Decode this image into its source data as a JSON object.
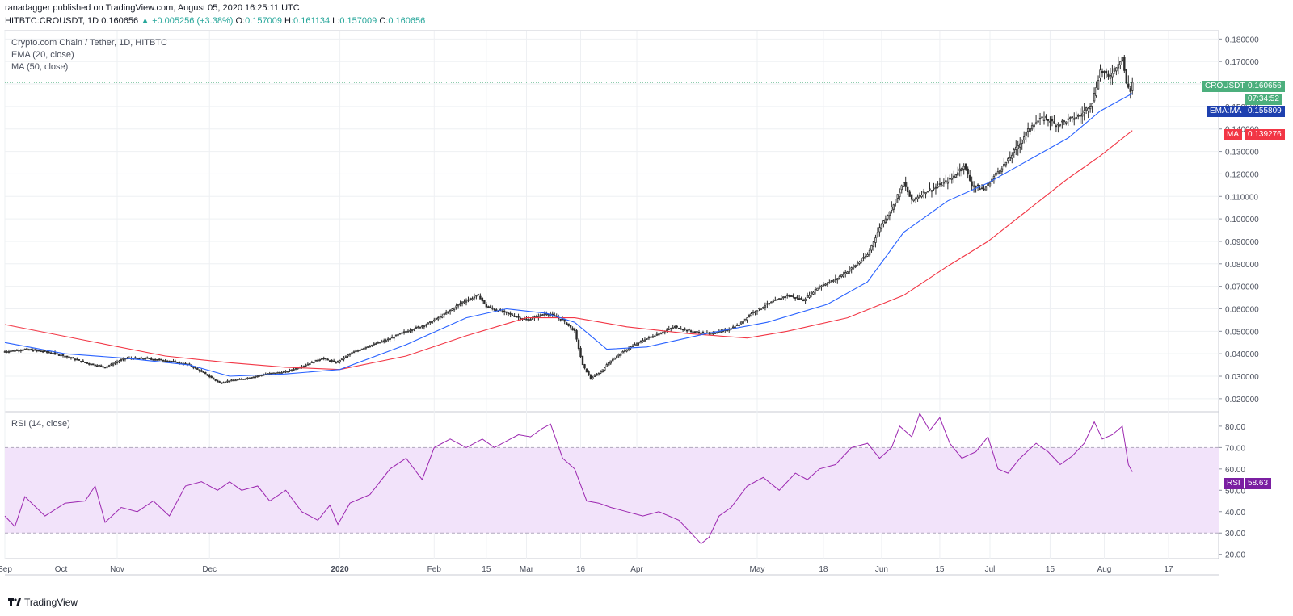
{
  "header": {
    "line1": "ranadagger published on TradingView.com, August 05, 2020 16:25:11 UTC",
    "symbol": "HITBTC:CROUSDT, 1D",
    "last": "0.160656",
    "change": "▲ +0.005256 (+3.38%)",
    "o_label": "O:",
    "o": "0.157009",
    "h_label": "H:",
    "h": "0.161134",
    "l_label": "L:",
    "l": "0.157009",
    "c_label": "C:",
    "c": "0.160656"
  },
  "legend": {
    "title": "Crypto.com Chain / Tether, 1D, HITBTC",
    "ema": "EMA (20, close)",
    "ma": "MA (50, close)",
    "rsi": "RSI (14, close)"
  },
  "tags": {
    "symbol_label": "CROUSDT",
    "symbol_value": "0.160656",
    "countdown": "07:34:52",
    "ema_label": "EMA:MA",
    "ema_value": "0.155809",
    "ma_label": "MA",
    "ma_value": "0.139276",
    "rsi_label": "RSI",
    "rsi_value": "58.63"
  },
  "footer": {
    "brand": "TradingView"
  },
  "colors": {
    "up": "#26a69a",
    "down": "#ef5350",
    "candle": "#2d2d2d",
    "ema": "#2962ff",
    "ma": "#f23645",
    "rsi": "#9c27b0",
    "rsi_band": "#f2e3fa",
    "symbol_tag": "#4caf7d",
    "ema_tag": "#1e40af",
    "rsi_tag": "#7b1fa2"
  },
  "chart_data": [
    {
      "type": "candlestick",
      "title": "Crypto.com Chain / Tether, 1D, HITBTC",
      "y_ticks": [
        "0.020000",
        "0.030000",
        "0.040000",
        "0.050000",
        "0.060000",
        "0.070000",
        "0.080000",
        "0.090000",
        "0.100000",
        "0.110000",
        "0.120000",
        "0.130000",
        "0.140000",
        "0.150000",
        "0.160000",
        "0.170000",
        "0.180000"
      ],
      "ylim": [
        0.016,
        0.183
      ],
      "x_ticks": [
        "Sep",
        "Oct",
        "Nov",
        "Dec",
        "2020",
        "Feb",
        "15",
        "Mar",
        "16",
        "Apr",
        "May",
        "18",
        "Jun",
        "15",
        "Jul",
        "15",
        "Aug",
        "17"
      ],
      "x_tick_days": [
        0,
        28,
        56,
        102,
        167,
        214,
        240,
        260,
        287,
        315,
        375,
        408,
        437,
        466,
        491,
        521,
        548,
        580
      ],
      "xlim_days": [
        0,
        605
      ],
      "x_dates": [
        "2019-09-04",
        "2020-08-05"
      ],
      "anchors": [
        [
          0,
          0.041
        ],
        [
          10,
          0.042
        ],
        [
          20,
          0.041
        ],
        [
          30,
          0.039
        ],
        [
          40,
          0.036
        ],
        [
          50,
          0.034
        ],
        [
          60,
          0.038
        ],
        [
          70,
          0.038
        ],
        [
          80,
          0.037
        ],
        [
          92,
          0.035
        ],
        [
          100,
          0.031
        ],
        [
          107,
          0.027
        ],
        [
          112,
          0.028
        ],
        [
          120,
          0.029
        ],
        [
          130,
          0.031
        ],
        [
          140,
          0.032
        ],
        [
          150,
          0.035
        ],
        [
          158,
          0.038
        ],
        [
          165,
          0.036
        ],
        [
          172,
          0.04
        ],
        [
          180,
          0.043
        ],
        [
          190,
          0.046
        ],
        [
          200,
          0.05
        ],
        [
          210,
          0.053
        ],
        [
          220,
          0.058
        ],
        [
          228,
          0.063
        ],
        [
          236,
          0.066
        ],
        [
          240,
          0.061
        ],
        [
          250,
          0.058
        ],
        [
          260,
          0.055
        ],
        [
          270,
          0.058
        ],
        [
          278,
          0.055
        ],
        [
          284,
          0.05
        ],
        [
          288,
          0.035
        ],
        [
          292,
          0.029
        ],
        [
          297,
          0.032
        ],
        [
          302,
          0.037
        ],
        [
          310,
          0.042
        ],
        [
          318,
          0.046
        ],
        [
          326,
          0.049
        ],
        [
          334,
          0.052
        ],
        [
          342,
          0.05
        ],
        [
          350,
          0.049
        ],
        [
          358,
          0.05
        ],
        [
          366,
          0.053
        ],
        [
          372,
          0.058
        ],
        [
          380,
          0.062
        ],
        [
          390,
          0.066
        ],
        [
          398,
          0.064
        ],
        [
          406,
          0.07
        ],
        [
          414,
          0.073
        ],
        [
          422,
          0.078
        ],
        [
          430,
          0.084
        ],
        [
          436,
          0.096
        ],
        [
          442,
          0.105
        ],
        [
          448,
          0.116
        ],
        [
          452,
          0.108
        ],
        [
          458,
          0.112
        ],
        [
          464,
          0.114
        ],
        [
          472,
          0.118
        ],
        [
          478,
          0.124
        ],
        [
          482,
          0.115
        ],
        [
          488,
          0.113
        ],
        [
          494,
          0.12
        ],
        [
          500,
          0.126
        ],
        [
          506,
          0.134
        ],
        [
          512,
          0.142
        ],
        [
          518,
          0.145
        ],
        [
          524,
          0.142
        ],
        [
          530,
          0.144
        ],
        [
          536,
          0.146
        ],
        [
          542,
          0.152
        ],
        [
          546,
          0.166
        ],
        [
          550,
          0.163
        ],
        [
          554,
          0.168
        ],
        [
          557,
          0.172
        ],
        [
          559,
          0.16
        ],
        [
          561,
          0.157
        ],
        [
          562,
          0.1607
        ]
      ],
      "ema20": [
        [
          0,
          0.045
        ],
        [
          30,
          0.04
        ],
        [
          60,
          0.038
        ],
        [
          92,
          0.035
        ],
        [
          112,
          0.03
        ],
        [
          140,
          0.031
        ],
        [
          167,
          0.033
        ],
        [
          200,
          0.044
        ],
        [
          230,
          0.056
        ],
        [
          250,
          0.06
        ],
        [
          270,
          0.058
        ],
        [
          284,
          0.054
        ],
        [
          300,
          0.042
        ],
        [
          320,
          0.043
        ],
        [
          350,
          0.049
        ],
        [
          380,
          0.054
        ],
        [
          410,
          0.062
        ],
        [
          430,
          0.072
        ],
        [
          448,
          0.094
        ],
        [
          470,
          0.108
        ],
        [
          490,
          0.116
        ],
        [
          506,
          0.124
        ],
        [
          530,
          0.136
        ],
        [
          546,
          0.148
        ],
        [
          562,
          0.1558
        ]
      ],
      "ma50": [
        [
          0,
          0.053
        ],
        [
          40,
          0.046
        ],
        [
          80,
          0.039
        ],
        [
          112,
          0.036
        ],
        [
          140,
          0.034
        ],
        [
          167,
          0.033
        ],
        [
          200,
          0.039
        ],
        [
          230,
          0.048
        ],
        [
          260,
          0.056
        ],
        [
          284,
          0.056
        ],
        [
          310,
          0.052
        ],
        [
          340,
          0.049
        ],
        [
          370,
          0.047
        ],
        [
          390,
          0.05
        ],
        [
          420,
          0.056
        ],
        [
          448,
          0.066
        ],
        [
          470,
          0.079
        ],
        [
          490,
          0.09
        ],
        [
          510,
          0.104
        ],
        [
          530,
          0.118
        ],
        [
          546,
          0.128
        ],
        [
          562,
          0.1393
        ]
      ]
    },
    {
      "type": "line",
      "title": "RSI (14, close)",
      "y_ticks": [
        "20.00",
        "30.00",
        "40.00",
        "50.00",
        "60.00",
        "70.00",
        "80.00"
      ],
      "ylim": [
        18,
        86
      ],
      "bands": [
        30,
        70
      ],
      "rsi": [
        [
          0,
          38
        ],
        [
          5,
          33
        ],
        [
          10,
          47
        ],
        [
          20,
          38
        ],
        [
          30,
          44
        ],
        [
          40,
          45
        ],
        [
          45,
          52
        ],
        [
          50,
          35
        ],
        [
          58,
          42
        ],
        [
          66,
          40
        ],
        [
          74,
          45
        ],
        [
          82,
          38
        ],
        [
          90,
          52
        ],
        [
          98,
          54
        ],
        [
          106,
          50
        ],
        [
          112,
          54
        ],
        [
          118,
          50
        ],
        [
          126,
          52
        ],
        [
          132,
          45
        ],
        [
          140,
          50
        ],
        [
          148,
          40
        ],
        [
          156,
          36
        ],
        [
          162,
          43
        ],
        [
          166,
          34
        ],
        [
          172,
          44
        ],
        [
          182,
          48
        ],
        [
          192,
          60
        ],
        [
          200,
          65
        ],
        [
          208,
          55
        ],
        [
          214,
          70
        ],
        [
          222,
          74
        ],
        [
          230,
          70
        ],
        [
          238,
          74
        ],
        [
          244,
          70
        ],
        [
          250,
          73
        ],
        [
          256,
          76
        ],
        [
          262,
          75
        ],
        [
          268,
          79
        ],
        [
          272,
          81
        ],
        [
          278,
          65
        ],
        [
          284,
          60
        ],
        [
          290,
          45
        ],
        [
          296,
          44
        ],
        [
          302,
          42
        ],
        [
          310,
          40
        ],
        [
          318,
          38
        ],
        [
          326,
          40
        ],
        [
          336,
          36
        ],
        [
          342,
          30
        ],
        [
          347,
          25
        ],
        [
          351,
          28
        ],
        [
          356,
          38
        ],
        [
          362,
          42
        ],
        [
          370,
          52
        ],
        [
          378,
          56
        ],
        [
          386,
          50
        ],
        [
          394,
          58
        ],
        [
          400,
          55
        ],
        [
          406,
          60
        ],
        [
          414,
          62
        ],
        [
          422,
          70
        ],
        [
          430,
          72
        ],
        [
          436,
          65
        ],
        [
          442,
          70
        ],
        [
          446,
          80
        ],
        [
          452,
          75
        ],
        [
          456,
          86
        ],
        [
          461,
          78
        ],
        [
          466,
          84
        ],
        [
          471,
          72
        ],
        [
          477,
          65
        ],
        [
          484,
          68
        ],
        [
          490,
          75
        ],
        [
          495,
          60
        ],
        [
          500,
          58
        ],
        [
          506,
          65
        ],
        [
          514,
          72
        ],
        [
          520,
          68
        ],
        [
          526,
          62
        ],
        [
          532,
          66
        ],
        [
          538,
          72
        ],
        [
          543,
          82
        ],
        [
          547,
          74
        ],
        [
          552,
          76
        ],
        [
          557,
          80
        ],
        [
          560,
          62
        ],
        [
          562,
          58.6
        ]
      ]
    }
  ]
}
